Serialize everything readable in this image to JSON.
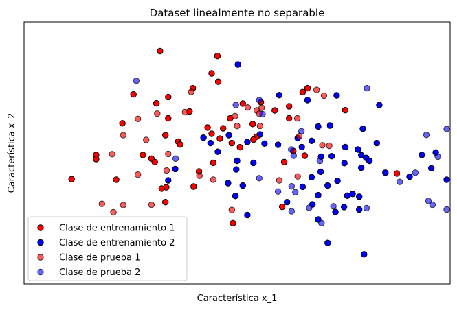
{
  "chart_data": {
    "type": "scatter",
    "title": "Dataset linealmente no separable",
    "xlabel": "Característica x_1",
    "ylabel": "Característica x_2",
    "xlim": [
      -0.2,
      10.2
    ],
    "ylim": [
      -0.3,
      10.3
    ],
    "grid": false,
    "ticks_visible": false,
    "legend_position": "lower-left",
    "series": [
      {
        "name": "Clase de entrenamiento 1",
        "color": "#ff0000",
        "alpha": 1.0,
        "points": [
          [
            3.12,
            9.12
          ],
          [
            4.52,
            8.92
          ],
          [
            4.38,
            8.22
          ],
          [
            4.54,
            7.88
          ],
          [
            3.92,
            7.62
          ],
          [
            6.72,
            7.62
          ],
          [
            6.6,
            7.46
          ],
          [
            2.47,
            7.37
          ],
          [
            3.32,
            7.26
          ],
          [
            3.03,
            7.01
          ],
          [
            5.58,
            7.05
          ],
          [
            5.14,
            7.0
          ],
          [
            6.27,
            6.89
          ],
          [
            7.64,
            6.73
          ],
          [
            5.92,
            6.72
          ],
          [
            3.84,
            6.68
          ],
          [
            3.32,
            6.4
          ],
          [
            6.27,
            6.4
          ],
          [
            4.83,
            6.4
          ],
          [
            2.2,
            6.2
          ],
          [
            5.38,
            6.17
          ],
          [
            4.28,
            6.03
          ],
          [
            4.66,
            6.0
          ],
          [
            4.38,
            5.78
          ],
          [
            3.25,
            5.72
          ],
          [
            5.48,
            5.66
          ],
          [
            5.4,
            5.54
          ],
          [
            4.58,
            5.58
          ],
          [
            4.87,
            5.4
          ],
          [
            3.56,
            5.46
          ],
          [
            3.61,
            5.34
          ],
          [
            5.07,
            5.23
          ],
          [
            6.37,
            5.08
          ],
          [
            6.65,
            4.89
          ],
          [
            2.7,
            4.92
          ],
          [
            1.56,
            4.92
          ],
          [
            2.91,
            4.77
          ],
          [
            1.56,
            4.75
          ],
          [
            6.15,
            4.63
          ],
          [
            2.99,
            4.63
          ],
          [
            4.42,
            4.6
          ],
          [
            4.07,
            4.25
          ],
          [
            0.96,
            3.94
          ],
          [
            2.05,
            3.92
          ],
          [
            8.9,
            4.17
          ],
          [
            3.27,
            3.61
          ],
          [
            3.16,
            3.56
          ],
          [
            3.94,
            3.64
          ],
          [
            3.25,
            3.01
          ],
          [
            6.1,
            2.82
          ],
          [
            4.9,
            2.16
          ]
        ]
      },
      {
        "name": "Clase de entrenamiento 2",
        "color": "#0000ff",
        "alpha": 1.0,
        "points": [
          [
            5.02,
            8.58
          ],
          [
            6.03,
            7.34
          ],
          [
            7.43,
            7.33
          ],
          [
            6.72,
            7.14
          ],
          [
            8.47,
            6.94
          ],
          [
            6.98,
            6.07
          ],
          [
            7.27,
            6.11
          ],
          [
            8.07,
            5.98
          ],
          [
            5.56,
            5.75
          ],
          [
            4.8,
            5.72
          ],
          [
            4.18,
            5.62
          ],
          [
            6.48,
            5.6
          ],
          [
            6.82,
            5.49
          ],
          [
            5.25,
            5.44
          ],
          [
            4.35,
            5.4
          ],
          [
            5.67,
            5.38
          ],
          [
            6.0,
            5.33
          ],
          [
            8.41,
            5.4
          ],
          [
            7.64,
            5.24
          ],
          [
            6.58,
            5.24
          ],
          [
            4.53,
            5.05
          ],
          [
            7.95,
            5.14
          ],
          [
            9.85,
            5.02
          ],
          [
            8.03,
            4.91
          ],
          [
            7.31,
            4.87
          ],
          [
            7.05,
            4.85
          ],
          [
            9.51,
            4.92
          ],
          [
            8.15,
            4.8
          ],
          [
            8.23,
            4.68
          ],
          [
            5.0,
            4.68
          ],
          [
            5.4,
            4.6
          ],
          [
            7.62,
            4.59
          ],
          [
            8.03,
            4.4
          ],
          [
            9.74,
            4.38
          ],
          [
            3.49,
            4.35
          ],
          [
            4.98,
            4.33
          ],
          [
            8.62,
            4.2
          ],
          [
            7.04,
            4.24
          ],
          [
            9.21,
            4.04
          ],
          [
            6.82,
            4.02
          ],
          [
            7.45,
            3.87
          ],
          [
            3.32,
            3.89
          ],
          [
            4.78,
            3.78
          ],
          [
            5.14,
            3.68
          ],
          [
            7.21,
            3.68
          ],
          [
            6.6,
            3.63
          ],
          [
            10.63,
            3.92
          ],
          [
            7.82,
            3.34
          ],
          [
            6.98,
            3.29
          ],
          [
            4.96,
            3.26
          ],
          [
            7.69,
            3.27
          ],
          [
            7.98,
            3.23
          ],
          [
            6.22,
            3.01
          ],
          [
            6.84,
            2.92
          ],
          [
            7.61,
            2.81
          ],
          [
            7.98,
            2.71
          ],
          [
            7.4,
            2.61
          ],
          [
            5.25,
            2.49
          ],
          [
            6.98,
            2.31
          ],
          [
            7.21,
            1.36
          ],
          [
            8.1,
            0.9
          ]
        ]
      },
      {
        "name": "Clase de prueba 1",
        "color": "#ff0000",
        "alpha": 0.65,
        "points": [
          [
            6.94,
            7.55
          ],
          [
            3.88,
            7.47
          ],
          [
            7.12,
            7.32
          ],
          [
            5.26,
            6.84
          ],
          [
            5.48,
            6.72
          ],
          [
            5.6,
            6.83
          ],
          [
            5.54,
            6.59
          ],
          [
            3.73,
            6.65
          ],
          [
            3.05,
            6.59
          ],
          [
            6.47,
            6.4
          ],
          [
            4.95,
            6.49
          ],
          [
            2.58,
            6.38
          ],
          [
            5.0,
            6.09
          ],
          [
            5.56,
            6.09
          ],
          [
            2.22,
            5.72
          ],
          [
            6.52,
            5.68
          ],
          [
            7.25,
            5.29
          ],
          [
            2.78,
            5.53
          ],
          [
            7.08,
            5.31
          ],
          [
            3.32,
            4.96
          ],
          [
            1.95,
            4.95
          ],
          [
            2.58,
            4.12
          ],
          [
            6.48,
            4.05
          ],
          [
            6.03,
            3.89
          ],
          [
            4.42,
            3.92
          ],
          [
            4.08,
            4.08
          ],
          [
            3.28,
            4.29
          ],
          [
            2.22,
            2.89
          ],
          [
            1.7,
            2.94
          ],
          [
            2.91,
            2.9
          ],
          [
            1.98,
            2.6
          ],
          [
            4.87,
            2.69
          ]
        ]
      },
      {
        "name": "Clase de prueba 2",
        "color": "#0000ff",
        "alpha": 0.6,
        "points": [
          [
            2.54,
            7.92
          ],
          [
            8.17,
            7.62
          ],
          [
            5.54,
            7.14
          ],
          [
            4.97,
            6.94
          ],
          [
            5.62,
            6.57
          ],
          [
            6.57,
            5.88
          ],
          [
            9.62,
            5.73
          ],
          [
            10.22,
            5.97
          ],
          [
            6.32,
            5.14
          ],
          [
            6.38,
            4.89
          ],
          [
            3.5,
            4.77
          ],
          [
            7.02,
            4.68
          ],
          [
            9.9,
            4.85
          ],
          [
            9.35,
            4.2
          ],
          [
            5.54,
            3.98
          ],
          [
            8.97,
            3.83
          ],
          [
            6.33,
            3.65
          ],
          [
            6.0,
            3.44
          ],
          [
            9.67,
            3.06
          ],
          [
            6.33,
            2.64
          ],
          [
            6.42,
            3.41
          ],
          [
            6.76,
            2.78
          ],
          [
            7.35,
            2.84
          ],
          [
            9.77,
            2.9
          ],
          [
            10.29,
            2.71
          ],
          [
            8.16,
            2.77
          ],
          [
            7.06,
            2.16
          ]
        ]
      }
    ]
  }
}
